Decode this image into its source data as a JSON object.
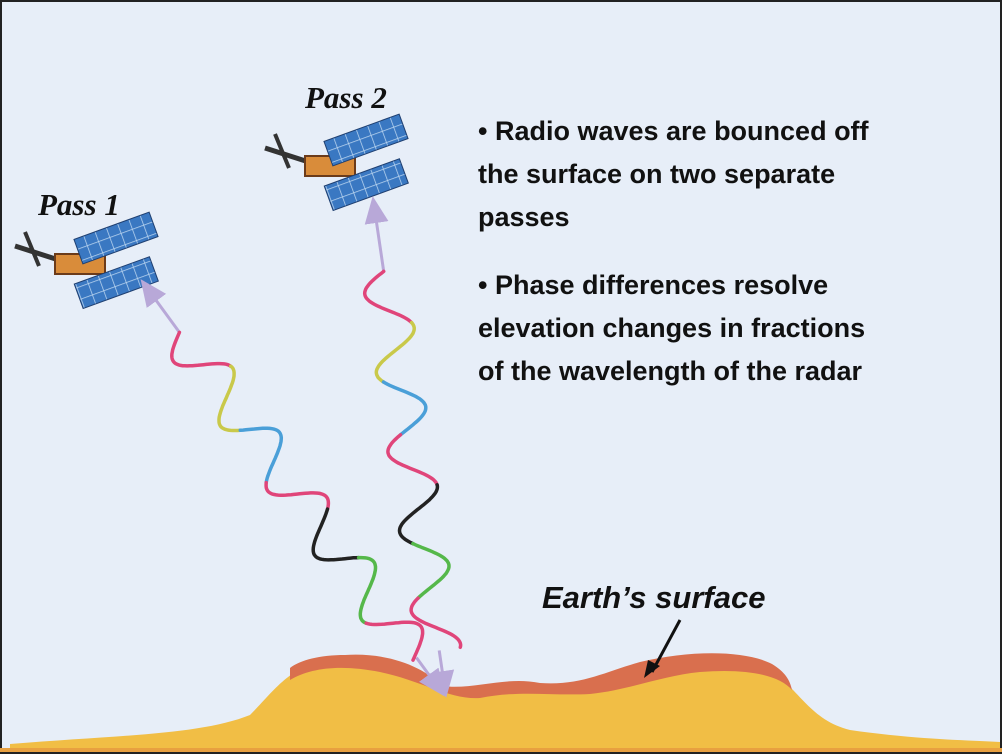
{
  "labels": {
    "pass1": "Pass 1",
    "pass2": "Pass 2",
    "surface": "Earth’s surface"
  },
  "bullets": [
    {
      "lines": [
        "• Radio waves are bounced off",
        "the surface on two separate",
        "passes"
      ]
    },
    {
      "lines": [
        "• Phase differences resolve",
        "elevation changes in fractions",
        "of the wavelength of the radar"
      ]
    }
  ]
}
